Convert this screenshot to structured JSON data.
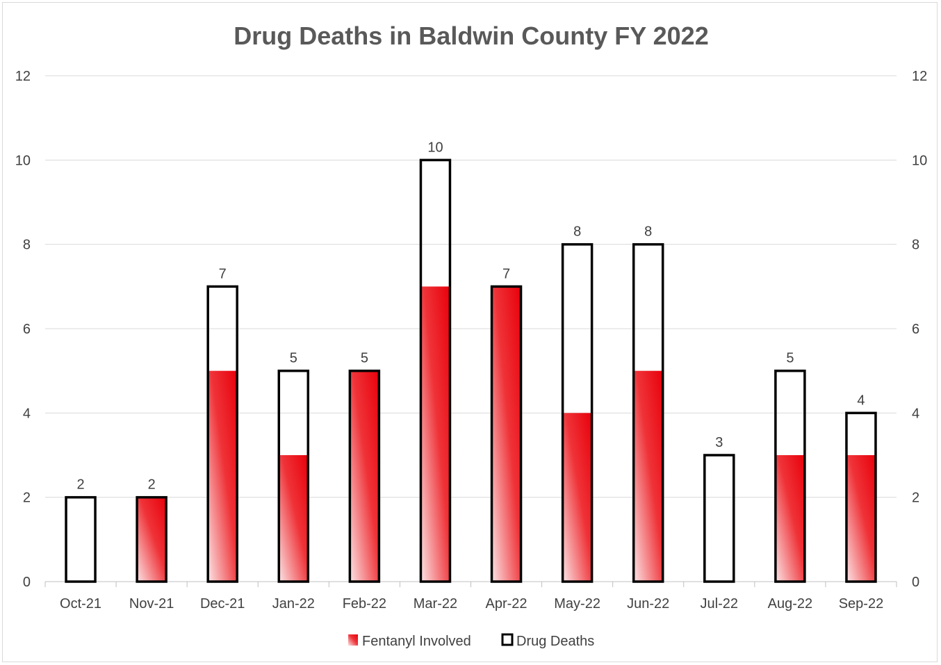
{
  "chart_data": {
    "type": "bar",
    "title": "Drug Deaths in Baldwin County FY 2022",
    "categories": [
      "Oct-21",
      "Nov-21",
      "Dec-21",
      "Jan-22",
      "Feb-22",
      "Mar-22",
      "Apr-22",
      "May-22",
      "Jun-22",
      "Jul-22",
      "Aug-22",
      "Sep-22"
    ],
    "series": [
      {
        "name": "Fentanyl Involved",
        "values": [
          0,
          2,
          5,
          3,
          5,
          7,
          7,
          4,
          5,
          0,
          3,
          3
        ],
        "color": "#e8000b"
      },
      {
        "name": "Drug Deaths",
        "values": [
          2,
          2,
          7,
          5,
          5,
          10,
          7,
          8,
          8,
          3,
          5,
          4
        ],
        "color": "#000000"
      }
    ],
    "ylim": [
      0,
      12
    ],
    "yticks": [
      0,
      2,
      4,
      6,
      8,
      10,
      12
    ],
    "secondary_axis": true,
    "grid": true,
    "legend_position": "bottom",
    "data_labels_series": "Drug Deaths"
  }
}
